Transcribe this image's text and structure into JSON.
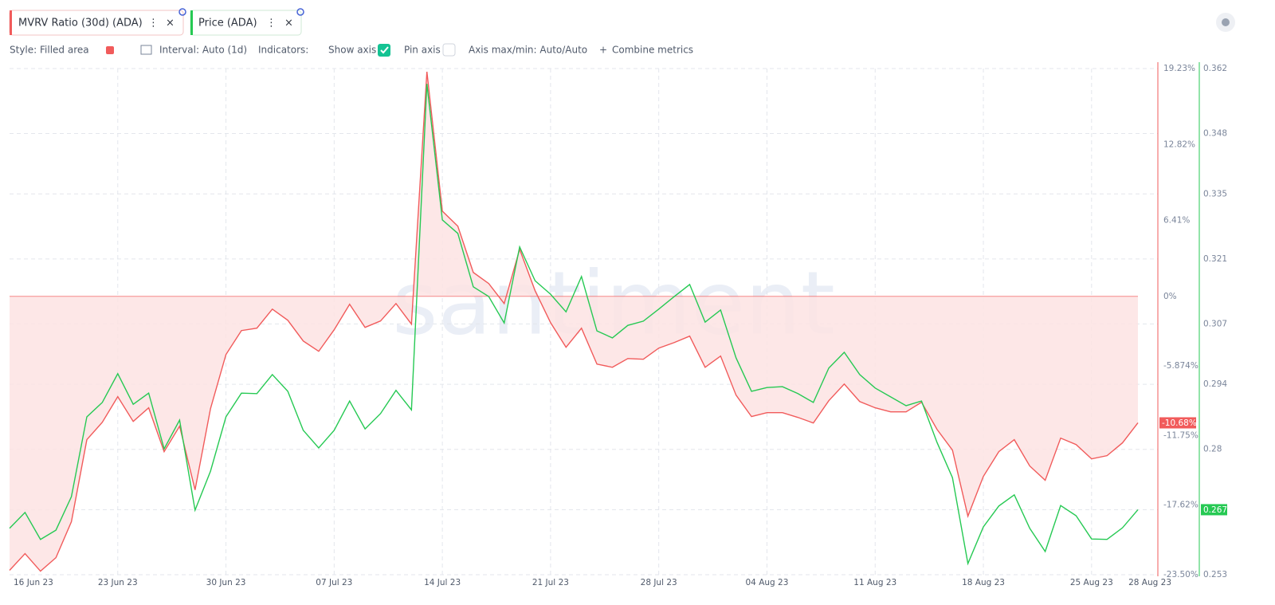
{
  "toolbar": {
    "style": "Style: Filled area",
    "interval": "Interval: Auto (1d)",
    "indicators": "Indicators:",
    "show_axis": "Show axis",
    "pin_axis": "Pin axis",
    "axis_minmax": "Axis max/min: Auto/Auto",
    "combine": "Combine metrics"
  },
  "chart_data": {
    "type": "line",
    "watermark": "santiment",
    "x": [
      "2023-06-16",
      "2023-06-17",
      "2023-06-18",
      "2023-06-19",
      "2023-06-20",
      "2023-06-21",
      "2023-06-22",
      "2023-06-23",
      "2023-06-24",
      "2023-06-25",
      "2023-06-26",
      "2023-06-27",
      "2023-06-28",
      "2023-06-29",
      "2023-06-30",
      "2023-07-01",
      "2023-07-02",
      "2023-07-03",
      "2023-07-04",
      "2023-07-05",
      "2023-07-06",
      "2023-07-07",
      "2023-07-08",
      "2023-07-09",
      "2023-07-10",
      "2023-07-11",
      "2023-07-12",
      "2023-07-13",
      "2023-07-14",
      "2023-07-15",
      "2023-07-16",
      "2023-07-17",
      "2023-07-18",
      "2023-07-19",
      "2023-07-20",
      "2023-07-21",
      "2023-07-22",
      "2023-07-23",
      "2023-07-24",
      "2023-07-25",
      "2023-07-26",
      "2023-07-27",
      "2023-07-28",
      "2023-07-29",
      "2023-07-30",
      "2023-07-31",
      "2023-08-01",
      "2023-08-02",
      "2023-08-03",
      "2023-08-04",
      "2023-08-05",
      "2023-08-06",
      "2023-08-07",
      "2023-08-08",
      "2023-08-09",
      "2023-08-10",
      "2023-08-11",
      "2023-08-12",
      "2023-08-13",
      "2023-08-14",
      "2023-08-15",
      "2023-08-16",
      "2023-08-17",
      "2023-08-18",
      "2023-08-19",
      "2023-08-20",
      "2023-08-21",
      "2023-08-22",
      "2023-08-23",
      "2023-08-24",
      "2023-08-25",
      "2023-08-26",
      "2023-08-27",
      "2023-08-28"
    ],
    "xticks": [
      {
        "value": "2023-06-16",
        "label": "16 Jun 23"
      },
      {
        "value": "2023-06-23",
        "label": "23 Jun 23"
      },
      {
        "value": "2023-06-30",
        "label": "30 Jun 23"
      },
      {
        "value": "2023-07-07",
        "label": "07 Jul 23"
      },
      {
        "value": "2023-07-14",
        "label": "14 Jul 23"
      },
      {
        "value": "2023-07-21",
        "label": "21 Jul 23"
      },
      {
        "value": "2023-07-28",
        "label": "28 Jul 23"
      },
      {
        "value": "2023-08-04",
        "label": "04 Aug 23"
      },
      {
        "value": "2023-08-11",
        "label": "11 Aug 23"
      },
      {
        "value": "2023-08-18",
        "label": "18 Aug 23"
      },
      {
        "value": "2023-08-25",
        "label": "25 Aug 23"
      },
      {
        "value": "2023-08-28",
        "label": "28 Aug 23"
      }
    ],
    "series": [
      {
        "name": "MVRV Ratio (30d) (ADA)",
        "color": "#f15b5b",
        "fill": "#fde3e3",
        "current_label": "-10.68%",
        "values": [
          -23.13,
          -21.72,
          -23.2,
          -22.06,
          -19.03,
          -12.1,
          -10.63,
          -8.47,
          -10.56,
          -9.41,
          -13.11,
          -10.96,
          -16.34,
          -9.48,
          -4.91,
          -2.89,
          -2.69,
          -1.08,
          -2.02,
          -3.77,
          -4.64,
          -2.82,
          -0.67,
          -2.62,
          -2.08,
          -0.61,
          -2.35,
          18.96,
          7.19,
          5.92,
          2.02,
          1.08,
          -0.61,
          3.97,
          0.47,
          -2.22,
          -4.3,
          -2.69,
          -5.72,
          -5.99,
          -5.25,
          -5.31,
          -4.37,
          -3.9,
          -3.36,
          -5.99,
          -5.04,
          -8.34,
          -10.15,
          -9.82,
          -9.82,
          -10.22,
          -10.69,
          -8.81,
          -7.4,
          -8.88,
          -9.41,
          -9.75,
          -9.75,
          -8.94,
          -11.23,
          -12.98,
          -18.56,
          -15.2,
          -13.11,
          -12.1,
          -14.32,
          -15.53,
          -11.97,
          -12.51,
          -13.72,
          -13.45,
          -12.37,
          -10.68
        ]
      },
      {
        "name": "Price (ADA)",
        "color": "#26c953",
        "axis": "y2",
        "current_label": "0.267",
        "values": [
          0.263,
          0.2664,
          0.2606,
          0.2626,
          0.2698,
          0.287,
          0.2901,
          0.2963,
          0.2897,
          0.2921,
          0.2801,
          0.2863,
          0.2669,
          0.2753,
          0.287,
          0.2921,
          0.292,
          0.2961,
          0.2925,
          0.2841,
          0.2803,
          0.2841,
          0.2904,
          0.2844,
          0.2877,
          0.2927,
          0.2885,
          0.3587,
          0.3294,
          0.3265,
          0.315,
          0.3129,
          0.3072,
          0.3236,
          0.3163,
          0.3134,
          0.3096,
          0.3172,
          0.3055,
          0.304,
          0.3067,
          0.3076,
          0.3102,
          0.3129,
          0.3155,
          0.3074,
          0.31,
          0.2997,
          0.2925,
          0.2933,
          0.2935,
          0.292,
          0.2901,
          0.2975,
          0.3009,
          0.2961,
          0.2932,
          0.2913,
          0.2894,
          0.2904,
          0.2815,
          0.2739,
          0.2554,
          0.2633,
          0.2678,
          0.2702,
          0.263,
          0.258,
          0.2679,
          0.2657,
          0.2607,
          0.2606,
          0.2631,
          0.267
        ]
      }
    ],
    "ylim": [
      -23.5,
      19.23
    ],
    "yticks": [
      {
        "value": 19.23,
        "label": "19.23%"
      },
      {
        "value": 12.82,
        "label": "12.82%"
      },
      {
        "value": 6.41,
        "label": "6.41%"
      },
      {
        "value": 0,
        "label": "0%"
      },
      {
        "value": -5.874,
        "label": "-5.874%"
      },
      {
        "value": -11.75,
        "label": "-11.75%"
      },
      {
        "value": -17.62,
        "label": "-17.62%"
      },
      {
        "value": -23.5,
        "label": "-23.50%"
      }
    ],
    "y2lim": [
      0.253,
      0.362
    ],
    "y2ticks": [
      0.362,
      0.348,
      0.335,
      0.321,
      0.307,
      0.294,
      0.28,
      0.267,
      0.253
    ],
    "grid": true
  }
}
